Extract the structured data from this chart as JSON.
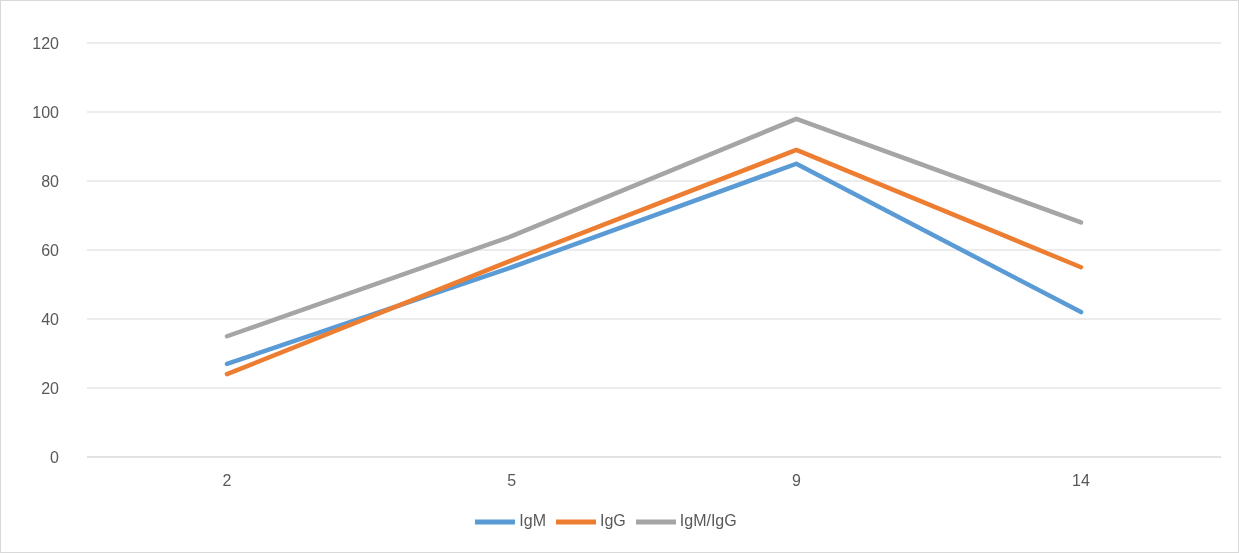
{
  "chart_data": {
    "type": "line",
    "categories": [
      "2",
      "5",
      "9",
      "14"
    ],
    "series": [
      {
        "name": "IgM",
        "color": "#5b9bd5",
        "values": [
          27,
          55,
          85,
          42
        ]
      },
      {
        "name": "IgG",
        "color": "#ed7d31",
        "values": [
          24,
          57,
          89,
          55
        ]
      },
      {
        "name": "IgM/IgG",
        "color": "#a5a5a5",
        "values": [
          35,
          64,
          98,
          68
        ]
      }
    ],
    "ylim": [
      0,
      120
    ],
    "yticks": [
      0,
      20,
      40,
      60,
      80,
      100,
      120
    ],
    "grid": "y",
    "legend": "bottom",
    "marker": "none",
    "line_style": "solid"
  }
}
